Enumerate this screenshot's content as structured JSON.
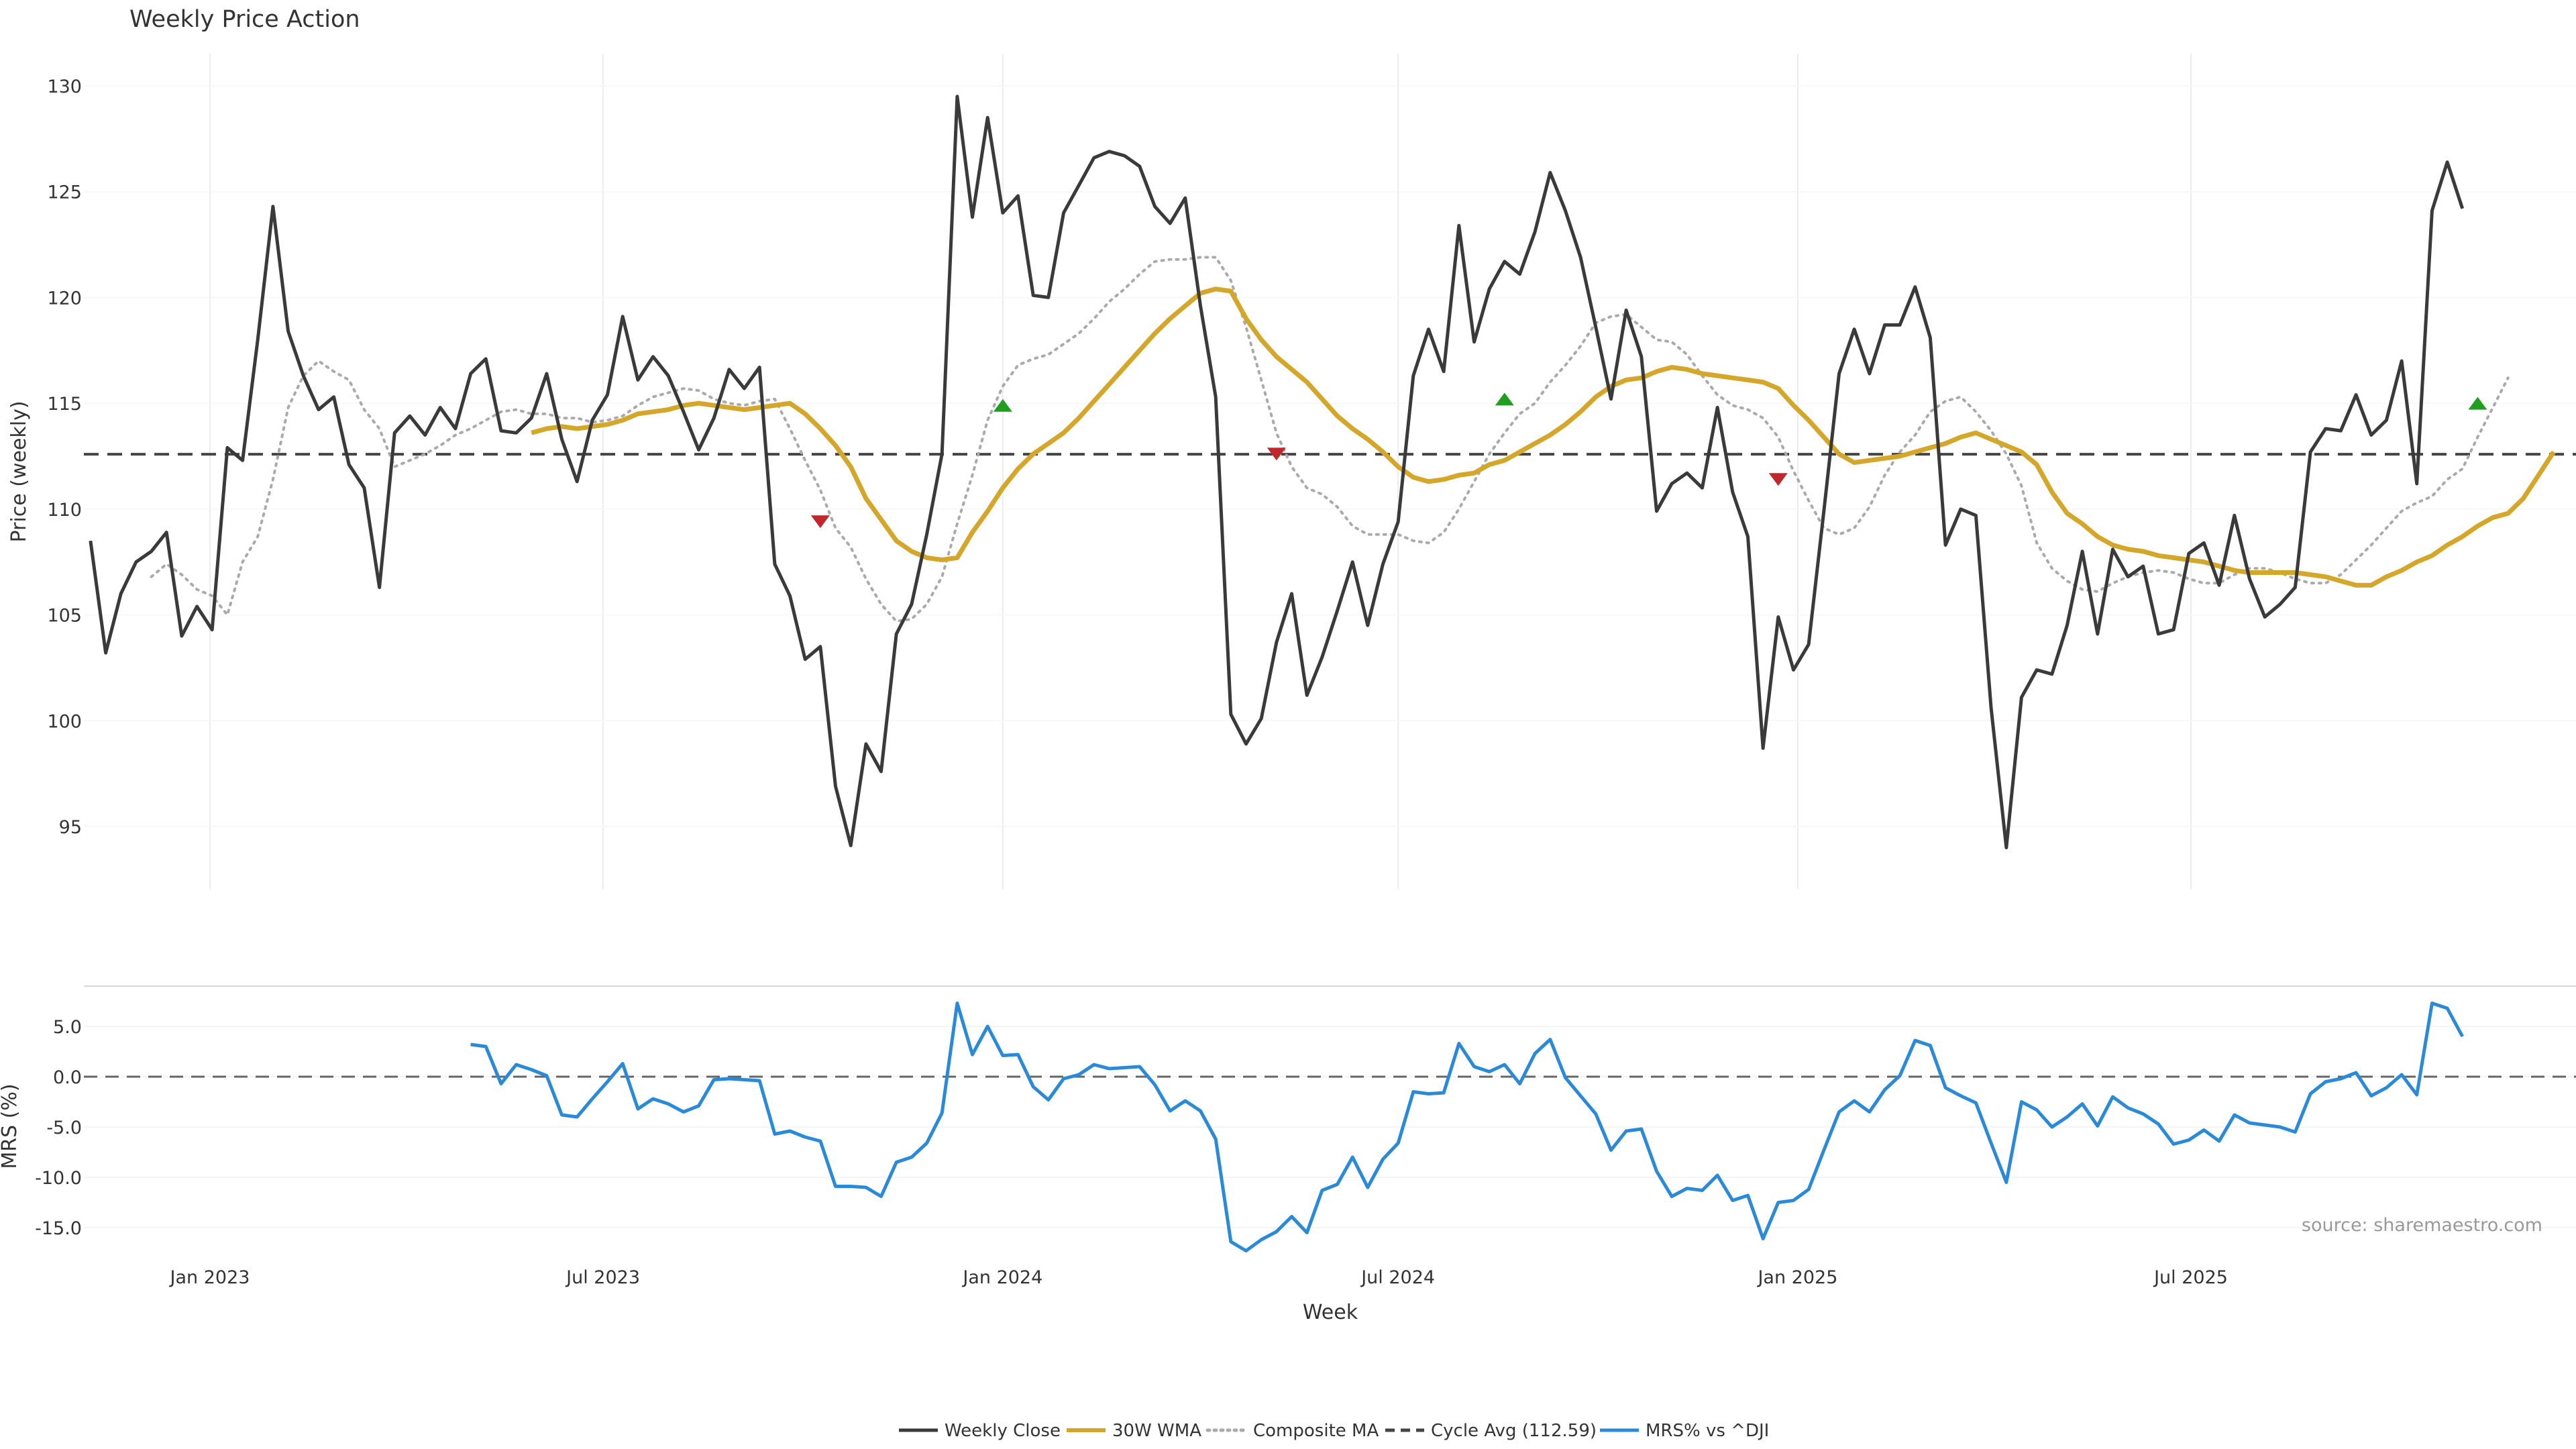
{
  "title": "Weekly Price Action",
  "source_note": "source: sharemaestro.com",
  "colors": {
    "close": "#3a3a3a",
    "wma": "#d4a62a",
    "composite": "#aaaaaa",
    "cycle": "#444444",
    "mrs": "#2b8ad8",
    "buy": "#1f9e1f",
    "sell": "#c0282d",
    "grid": "#ececec"
  },
  "chart_data": [
    {
      "type": "line",
      "x_type": "date",
      "title": "Weekly Price Action",
      "ylabel": "Price (weekly)",
      "xlabel": "",
      "ylim": [
        92,
        131.5
      ],
      "yticks": [
        95,
        100,
        105,
        110,
        115,
        120,
        125,
        130
      ],
      "grid": true,
      "start_date": "2022-11-07",
      "series": [
        {
          "name": "Weekly Close",
          "style": "solid",
          "values": [
            108.5,
            103.2,
            106.0,
            107.5,
            108.0,
            108.9,
            104.0,
            105.4,
            104.3,
            112.9,
            112.3,
            118.0,
            124.3,
            118.4,
            116.3,
            114.7,
            115.3,
            112.1,
            111.0,
            106.3,
            113.6,
            114.4,
            113.5,
            114.8,
            113.8,
            116.4,
            117.1,
            113.7,
            113.6,
            114.3,
            116.4,
            113.3,
            111.3,
            114.2,
            115.4,
            119.1,
            116.1,
            117.2,
            116.3,
            114.6,
            112.8,
            114.3,
            116.6,
            115.7,
            116.7,
            107.4,
            105.9,
            102.9,
            103.5,
            96.9,
            94.1,
            98.9,
            97.6,
            104.1,
            105.5,
            108.8,
            112.6,
            129.5,
            123.8,
            128.5,
            124.0,
            124.8,
            120.1,
            120.0,
            124.0,
            125.3,
            126.6,
            126.9,
            126.7,
            126.2,
            124.3,
            123.5,
            124.7,
            119.6,
            115.3,
            100.3,
            98.9,
            100.1,
            103.7,
            106.0,
            101.2,
            103.0,
            105.2,
            107.5,
            104.5,
            107.4,
            109.4,
            116.3,
            118.5,
            116.5,
            123.4,
            117.9,
            120.4,
            121.7,
            121.1,
            123.1,
            125.9,
            124.1,
            121.9,
            118.6,
            115.2,
            119.4,
            117.2,
            109.9,
            111.2,
            111.7,
            111.0,
            114.8,
            110.8,
            108.7,
            98.7,
            104.9,
            102.4,
            103.6,
            109.9,
            116.4,
            118.5,
            116.4,
            118.7,
            118.7,
            120.5,
            118.1,
            108.3,
            110.0,
            109.7,
            100.6,
            94.0,
            101.1,
            102.4,
            102.2,
            104.5,
            108.0,
            104.1,
            108.1,
            106.8,
            107.3,
            104.1,
            104.3,
            107.9,
            108.4,
            106.4,
            109.7,
            106.7,
            104.9,
            105.5,
            106.3,
            112.7,
            113.8,
            113.7,
            115.4,
            113.5,
            114.2,
            117.0,
            111.2,
            124.1,
            126.4,
            124.2
          ],
          "offset": 0
        },
        {
          "name": "30W WMA",
          "style": "solid",
          "offset": 29,
          "values": [
            113.6,
            113.8,
            113.9,
            113.8,
            113.9,
            114.0,
            114.2,
            114.5,
            114.6,
            114.7,
            114.9,
            115.0,
            114.9,
            114.8,
            114.7,
            114.8,
            114.9,
            115.0,
            114.5,
            113.8,
            113.0,
            112.0,
            110.5,
            109.5,
            108.5,
            108.0,
            107.7,
            107.6,
            107.7,
            108.9,
            109.9,
            111.0,
            111.9,
            112.6,
            113.1,
            113.6,
            114.3,
            115.1,
            115.9,
            116.7,
            117.5,
            118.3,
            119.0,
            119.6,
            120.2,
            120.4,
            120.3,
            119.0,
            118.0,
            117.2,
            116.6,
            116.0,
            115.2,
            114.4,
            113.8,
            113.3,
            112.7,
            112.0,
            111.5,
            111.3,
            111.4,
            111.6,
            111.7,
            112.1,
            112.3,
            112.7,
            113.1,
            113.5,
            114.0,
            114.6,
            115.3,
            115.8,
            116.1,
            116.2,
            116.5,
            116.7,
            116.6,
            116.4,
            116.3,
            116.2,
            116.1,
            116.0,
            115.7,
            114.9,
            114.2,
            113.4,
            112.6,
            112.2,
            112.3,
            112.4,
            112.5,
            112.7,
            112.9,
            113.1,
            113.4,
            113.6,
            113.3,
            113.0,
            112.7,
            112.1,
            110.8,
            109.8,
            109.3,
            108.7,
            108.3,
            108.1,
            108.0,
            107.8,
            107.7,
            107.6,
            107.5,
            107.3,
            107.1,
            107.0,
            107.0,
            107.0,
            107.0,
            106.9,
            106.8,
            106.6,
            106.4,
            106.4,
            106.8,
            107.1,
            107.5,
            107.8,
            108.3,
            108.7,
            109.2,
            109.6,
            109.8,
            110.5,
            111.6,
            112.7
          ]
        },
        {
          "name": "Composite MA",
          "style": "dotted",
          "offset": 4,
          "values": [
            106.8,
            107.4,
            106.9,
            106.2,
            105.9,
            105.0,
            107.5,
            108.7,
            111.4,
            114.8,
            116.3,
            117.0,
            116.5,
            116.1,
            114.7,
            113.8,
            112.0,
            112.3,
            112.6,
            113.0,
            113.5,
            113.8,
            114.2,
            114.6,
            114.7,
            114.5,
            114.5,
            114.3,
            114.3,
            114.1,
            114.2,
            114.4,
            114.9,
            115.3,
            115.5,
            115.7,
            115.6,
            115.2,
            115.0,
            114.9,
            115.1,
            115.2,
            113.8,
            112.3,
            110.9,
            109.1,
            108.2,
            106.7,
            105.5,
            104.7,
            104.8,
            105.5,
            106.8,
            109.3,
            111.6,
            114.2,
            115.8,
            116.8,
            117.1,
            117.3,
            117.8,
            118.3,
            119.0,
            119.8,
            120.4,
            121.1,
            121.7,
            121.8,
            121.8,
            121.9,
            121.9,
            120.8,
            118.6,
            116.1,
            113.6,
            112.0,
            111.0,
            110.7,
            110.1,
            109.2,
            108.8,
            108.8,
            108.8,
            108.5,
            108.4,
            108.9,
            110.0,
            111.3,
            112.6,
            113.6,
            114.5,
            115.0,
            116.0,
            116.8,
            117.7,
            118.8,
            119.1,
            119.2,
            118.6,
            118.0,
            117.9,
            117.3,
            116.3,
            115.4,
            114.9,
            114.7,
            114.3,
            113.4,
            111.8,
            110.4,
            109.1,
            108.8,
            109.1,
            110.1,
            111.6,
            112.7,
            113.5,
            114.6,
            115.1,
            115.3,
            114.6,
            113.7,
            112.6,
            111.1,
            108.4,
            107.2,
            106.6,
            106.2,
            106.1,
            106.5,
            106.8,
            107.0,
            107.1,
            107.0,
            106.7,
            106.5,
            106.5,
            106.9,
            107.2,
            107.2,
            107.0,
            106.7,
            106.5,
            106.5,
            106.9,
            107.6,
            108.3,
            109.1,
            109.9,
            110.3,
            110.6,
            111.4,
            111.9,
            113.4,
            114.8,
            116.2
          ]
        },
        {
          "name": "Cycle Avg (112.59)",
          "style": "dashed",
          "constant": 112.59
        }
      ],
      "signals": [
        {
          "type": "sell",
          "index": 48,
          "value": 109.4
        },
        {
          "type": "buy",
          "index": 60,
          "value": 114.9
        },
        {
          "type": "sell",
          "index": 78,
          "value": 112.6
        },
        {
          "type": "buy",
          "index": 93,
          "value": 115.2
        },
        {
          "type": "sell",
          "index": 111,
          "value": 111.4
        },
        {
          "type": "buy",
          "index": 157,
          "value": 115.0
        }
      ]
    },
    {
      "type": "line",
      "x_type": "date",
      "ylabel": "MRS (%)",
      "xlabel": "Week",
      "ylim": [
        -17.5,
        8.0
      ],
      "yticks": [
        -15.0,
        -10.0,
        -5.0,
        0.0,
        5.0
      ],
      "xticks": [
        "Jan 2023",
        "Jul 2023",
        "Jan 2024",
        "Jul 2024",
        "Jan 2025",
        "Jul 2025"
      ],
      "xtick_dates": [
        "2023-01-01",
        "2023-07-01",
        "2024-01-01",
        "2024-07-01",
        "2025-01-01",
        "2025-07-01"
      ],
      "zero_line": true,
      "grid": true,
      "series": [
        {
          "name": "MRS% vs ^DJI",
          "style": "solid",
          "offset": 25,
          "values": [
            3.2,
            3.0,
            -0.7,
            1.2,
            0.7,
            0.1,
            -3.8,
            -4.0,
            -2.2,
            -0.5,
            1.3,
            -3.2,
            -2.2,
            -2.7,
            -3.5,
            -2.9,
            -0.3,
            -0.2,
            -0.3,
            -0.4,
            -5.7,
            -5.4,
            -6.0,
            -6.4,
            -10.9,
            -10.9,
            -11.0,
            -11.9,
            -8.5,
            -8.0,
            -6.6,
            -3.6,
            7.3,
            2.2,
            5.0,
            2.1,
            2.2,
            -1.0,
            -2.3,
            -0.2,
            0.2,
            1.2,
            0.8,
            0.9,
            1.0,
            -0.8,
            -3.4,
            -2.4,
            -3.4,
            -6.2,
            -16.4,
            -17.3,
            -16.2,
            -15.4,
            -13.9,
            -15.5,
            -11.3,
            -10.7,
            -8.0,
            -11.0,
            -8.2,
            -6.6,
            -1.5,
            -1.7,
            -1.6,
            3.3,
            1.0,
            0.5,
            1.2,
            -0.7,
            2.3,
            3.7,
            -0.1,
            -1.9,
            -3.7,
            -7.3,
            -5.4,
            -5.2,
            -9.4,
            -11.9,
            -11.1,
            -11.3,
            -9.8,
            -12.3,
            -11.8,
            -16.1,
            -12.5,
            -12.3,
            -11.2,
            -7.3,
            -3.5,
            -2.4,
            -3.5,
            -1.3,
            0.1,
            3.6,
            3.1,
            -1.1,
            -1.9,
            -2.6,
            -6.6,
            -10.5,
            -2.5,
            -3.3,
            -5.0,
            -4.0,
            -2.7,
            -4.9,
            -2.0,
            -3.1,
            -3.7,
            -4.7,
            -6.7,
            -6.3,
            -5.3,
            -6.4,
            -3.8,
            -4.6,
            -4.8,
            -5.0,
            -5.5,
            -1.7,
            -0.5,
            -0.2,
            0.4,
            -1.9,
            -1.1,
            0.2,
            -1.8,
            7.3,
            6.8,
            4.0
          ]
        }
      ]
    }
  ],
  "legend": {
    "items": [
      {
        "label": "Weekly Close",
        "style": "solid",
        "color_key": "close"
      },
      {
        "label": "30W WMA",
        "style": "solid",
        "color_key": "wma"
      },
      {
        "label": "Composite MA",
        "style": "dotted",
        "color_key": "composite"
      },
      {
        "label": "Cycle Avg (112.59)",
        "style": "dashed",
        "color_key": "cycle"
      },
      {
        "label": "MRS% vs ^DJI",
        "style": "solid",
        "color_key": "mrs"
      }
    ]
  }
}
